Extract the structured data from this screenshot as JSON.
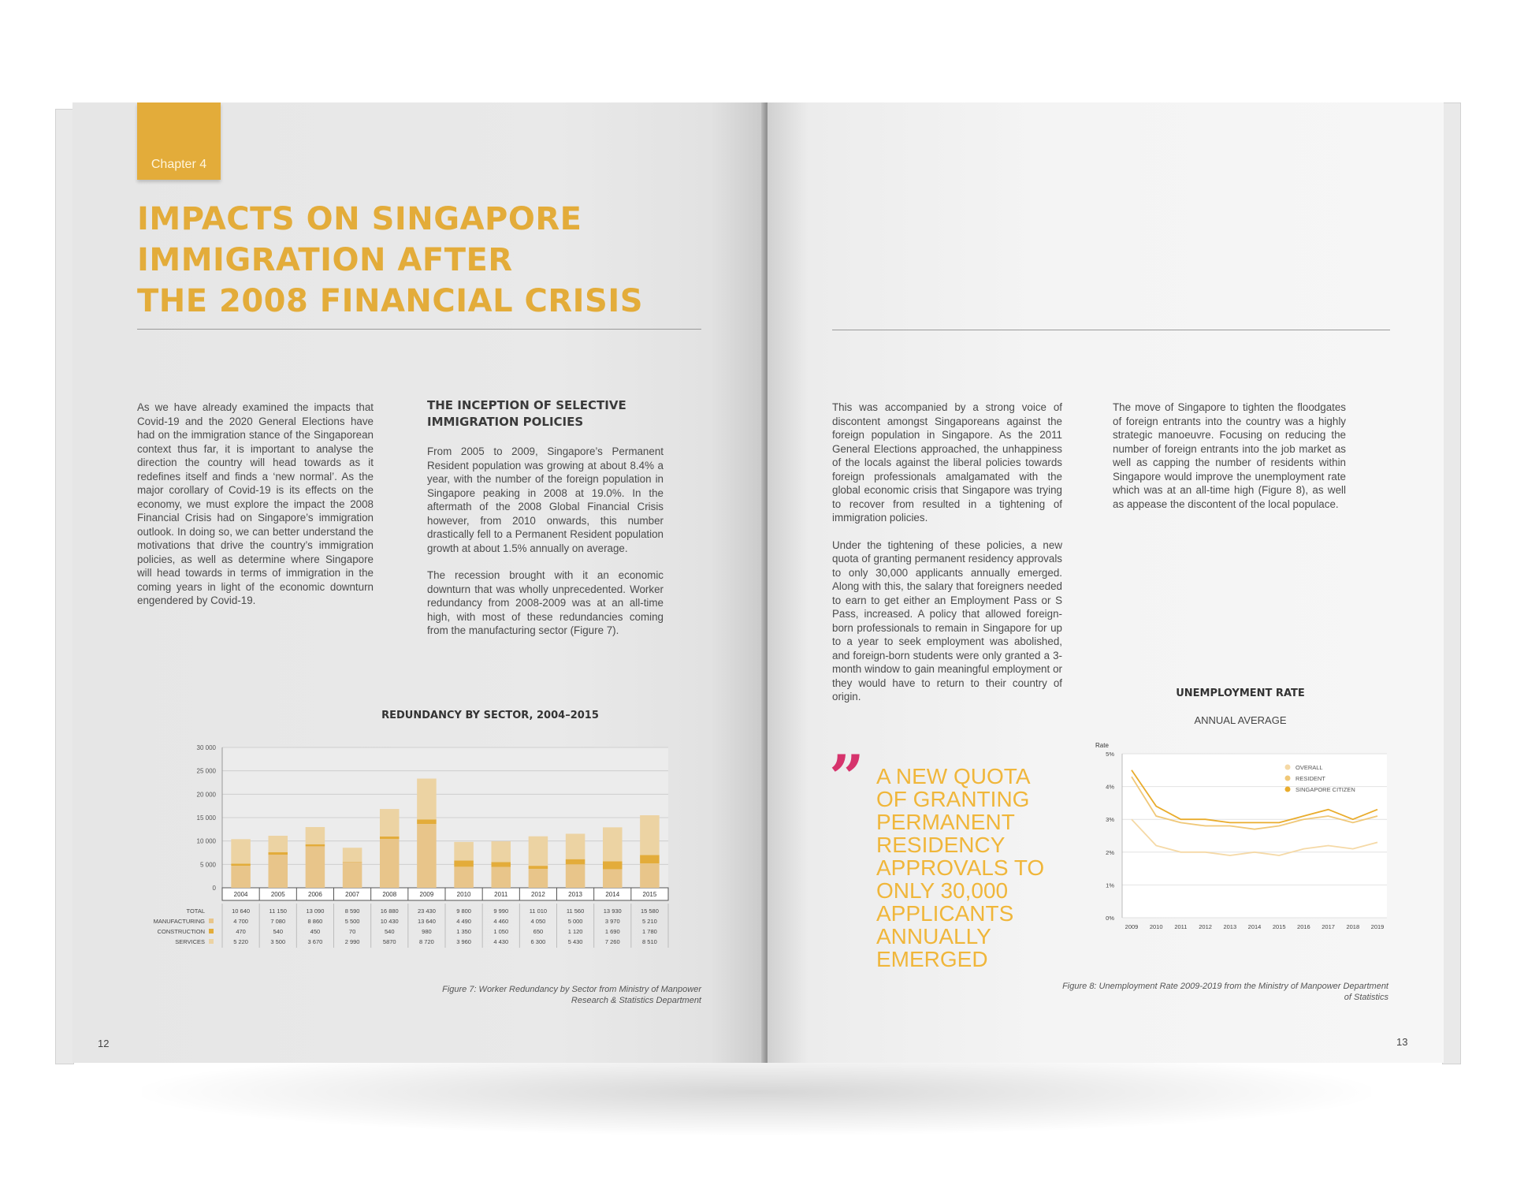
{
  "left_page": {
    "chapter": "Chapter 4",
    "title_lines": [
      "IMPACTS ON SINGAPORE",
      "IMMIGRATION AFTER",
      "THE 2008 FINANCIAL CRISIS"
    ],
    "intro": "As we have already examined the impacts that Covid-19 and the 2020 General Elections have had on the immigration stance of the Singaporean context thus far, it is important to analyse the direction the country will head towards as it redefines itself and finds a ‘new normal’. As the major corollary of Covid-19 is its effects on the economy, we must explore the impact the 2008 Financial Crisis had on Singapore’s immigration outlook. In doing so, we can better understand the motivations that drive the country’s immigration policies, as well as determine where Singapore will head towards in terms of immigration in the coming years in light of the economic downturn engendered by Covid-19.",
    "section_heading": "THE INCEPTION OF SELECTIVE IMMIGRATION POLICIES",
    "section_p1": "From 2005 to 2009, Singapore’s Permanent Resident population was growing at about 8.4% a year, with the number of the foreign population in Singapore peaking in 2008 at 19.0%. In the aftermath of the 2008 Global Financial Crisis however, from 2010 onwards, this number drastically fell to a Permanent Resident population growth at about 1.5% annually on average.",
    "section_p2": "The recession brought with it an economic downturn that was wholly unprecedented. Worker redundancy from 2008-2009 was at an all-time high, with most of these redundancies coming from the manufacturing sector (Figure 7).",
    "caption": "Figure 7: Worker Redundancy by Sector from Ministry of Manpower Research & Statistics Department",
    "page_number": "12"
  },
  "right_page": {
    "col1_p1": "This was accompanied by a strong voice of discontent amongst Singaporeans against the foreign population in Singapore. As the 2011 General Elections approached, the unhappiness of the locals against the liberal policies towards foreign professionals amalgamated with the global economic crisis that Singapore was trying to recover from resulted in a tightening of immigration policies.",
    "col1_p2": "Under the tightening of these policies, a new quota of granting permanent residency approvals to only 30,000 applicants annually emerged. Along with this, the salary that foreigners needed to earn to get either an Employment Pass or S Pass, increased. A policy that allowed foreign-born professionals to remain in Singapore for up to a year to seek employment was abolished, and foreign-born students were only granted a 3-month window to gain meaningful employment or they would have to return to their country of origin.",
    "col2_p1": "The move of Singapore to tighten the floodgates of foreign entrants into the country was a highly strategic manoeuvre. Focusing on reducing the number of foreign entrants into the job market as well as capping the number of residents within Singapore would improve the unemployment rate which was at an all-time high (Figure 8), as well as appease the discontent of the local populace.",
    "quote_mark": "”",
    "pull_quote": "A NEW QUOTA OF GRANTING PERMANENT RESIDENCY APPROVALS TO ONLY 30,000 APPLICANTS ANNUALLY EMERGED",
    "caption": "Figure 8: Unemployment Rate 2009-2019 from the Ministry of Manpower Department of Statistics",
    "page_number": "13"
  },
  "colors": {
    "accent": "#e3ac3a",
    "quote_text": "#f0b63a",
    "quote_mark": "#d6336c",
    "services": "#ecd3a3",
    "construction": "#e3ac3a",
    "manufacturing": "#e8c58a",
    "line_overall": "#f5d9a6",
    "line_resident": "#f0c878",
    "line_citizen": "#e9ac2c"
  },
  "chart_data": [
    {
      "type": "bar",
      "title": "REDUNDANCY BY SECTOR, 2004–2015",
      "stacked": true,
      "categories": [
        "2004",
        "2005",
        "2006",
        "2007",
        "2008",
        "2009",
        "2010",
        "2011",
        "2012",
        "2013",
        "2014",
        "2015"
      ],
      "ylim": [
        0,
        30000
      ],
      "yticks": [
        "0",
        "5 000",
        "10 000",
        "15 000",
        "20 000",
        "25 000",
        "30 000"
      ],
      "grid": true,
      "series": [
        {
          "name": "MANUFACTURING",
          "values": [
            4700,
            7080,
            8860,
            5500,
            10430,
            13640,
            4490,
            4460,
            4050,
            5000,
            3970,
            5210
          ]
        },
        {
          "name": "CONSTRUCTION",
          "values": [
            470,
            540,
            450,
            70,
            540,
            980,
            1350,
            1050,
            650,
            1120,
            1690,
            1780
          ]
        },
        {
          "name": "SERVICES",
          "values": [
            5220,
            3500,
            3670,
            2990,
            5870,
            8720,
            3960,
            4430,
            6300,
            5430,
            7260,
            8510
          ]
        }
      ],
      "table": {
        "row_labels": [
          "TOTAL",
          "MANUFACTURING",
          "CONSTRUCTION",
          "SERVICES"
        ],
        "rows": [
          [
            "10 640",
            "11 150",
            "13 090",
            "8 590",
            "16 880",
            "23 430",
            "9 800",
            "9 990",
            "11 010",
            "11 560",
            "13 930",
            "15 580"
          ],
          [
            "4 700",
            "7 080",
            "8 860",
            "5 500",
            "10 430",
            "13 640",
            "4 490",
            "4 460",
            "4 050",
            "5 000",
            "3 970",
            "5 210"
          ],
          [
            "470",
            "540",
            "450",
            "70",
            "540",
            "980",
            "1 350",
            "1 050",
            "650",
            "1 120",
            "1 690",
            "1 780"
          ],
          [
            "5 220",
            "3 500",
            "3 670",
            "2 990",
            "5870",
            "8 720",
            "3 960",
            "4 430",
            "6 300",
            "5 430",
            "7 260",
            "8 510"
          ]
        ]
      }
    },
    {
      "type": "line",
      "title": "UNEMPLOYMENT RATE",
      "subtitle": "ANNUAL AVERAGE",
      "ylabel": "Rate",
      "x": [
        "2009",
        "2010",
        "2011",
        "2012",
        "2013",
        "2014",
        "2015",
        "2016",
        "2017",
        "2018",
        "2019"
      ],
      "ylim": [
        0,
        5
      ],
      "yticks": [
        "0%",
        "1%",
        "2%",
        "3%",
        "4%",
        "5%"
      ],
      "grid": true,
      "legend_position": "top-right",
      "series": [
        {
          "name": "OVERALL",
          "values": [
            3.0,
            2.2,
            2.0,
            2.0,
            1.9,
            2.0,
            1.9,
            2.1,
            2.2,
            2.1,
            2.3
          ]
        },
        {
          "name": "RESIDENT",
          "values": [
            4.3,
            3.1,
            2.9,
            2.8,
            2.8,
            2.7,
            2.8,
            3.0,
            3.1,
            2.9,
            3.1
          ]
        },
        {
          "name": "SINGAPORE CITIZEN",
          "values": [
            4.5,
            3.4,
            3.0,
            3.0,
            2.9,
            2.9,
            2.9,
            3.1,
            3.3,
            3.0,
            3.3
          ]
        }
      ]
    }
  ]
}
